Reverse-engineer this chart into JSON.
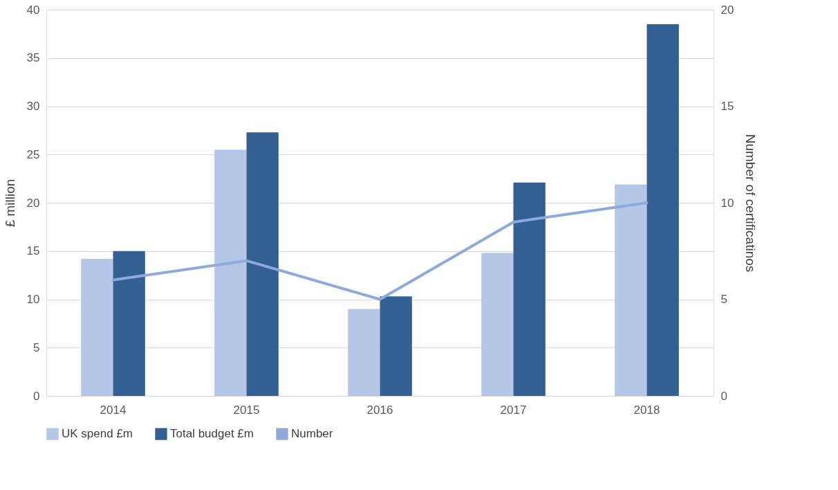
{
  "chart_data": {
    "type": "bar",
    "categories": [
      "2014",
      "2015",
      "2016",
      "2017",
      "2018"
    ],
    "ylabel": "£ million",
    "y2label": "Number of certificatinos",
    "series": [
      {
        "name": "UK spend £m",
        "color": "#b4c7e7",
        "values": [
          14.2,
          25.5,
          9.0,
          14.8,
          21.9
        ]
      },
      {
        "name": "Total budget £m",
        "color": "#345f92",
        "values": [
          15.0,
          27.3,
          10.3,
          22.1,
          38.5
        ]
      },
      {
        "name": "Number",
        "type": "line",
        "axis": "y2",
        "color": "#8eaadb",
        "values": [
          6,
          7,
          5,
          9,
          10
        ]
      }
    ],
    "ylim": [
      0,
      40
    ],
    "yticks": [
      0,
      5,
      10,
      15,
      20,
      25,
      30,
      35,
      40
    ],
    "y2lim": [
      0,
      20
    ],
    "y2ticks": [
      0,
      5,
      10,
      15,
      20
    ],
    "grid": "y",
    "legend": "bottom",
    "marker": "none",
    "line_style": "solid"
  }
}
